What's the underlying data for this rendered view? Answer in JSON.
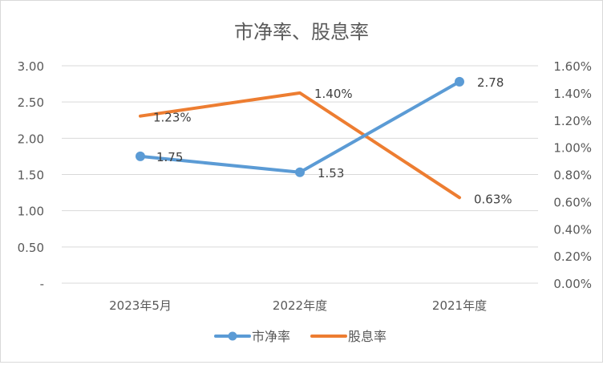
{
  "chart_data": {
    "type": "line",
    "title": "市净率、股息率",
    "categories": [
      "2023年5月",
      "2022年度",
      "2021年度"
    ],
    "series": [
      {
        "name": "市净率",
        "axis": "left",
        "values": [
          1.75,
          1.53,
          2.78
        ],
        "labels": [
          "1.75",
          "1.53",
          "2.78"
        ],
        "color": "#5B9BD5",
        "marker": "circle"
      },
      {
        "name": "股息率",
        "axis": "right",
        "values": [
          1.23,
          1.4,
          0.63
        ],
        "labels": [
          "1.23%",
          "1.40%",
          "0.63%"
        ],
        "color": "#ED7D31",
        "marker": "none"
      }
    ],
    "y_left": {
      "range": [
        0,
        3.0
      ],
      "ticks": [
        0,
        0.5,
        1.0,
        1.5,
        2.0,
        2.5,
        3.0
      ],
      "tick_labels": [
        "-",
        "0.50",
        "1.00",
        "1.50",
        "2.00",
        "2.50",
        "3.00"
      ]
    },
    "y_right": {
      "range": [
        0,
        1.6
      ],
      "unit": "%",
      "ticks": [
        0,
        0.2,
        0.4,
        0.6,
        0.8,
        1.0,
        1.2,
        1.4,
        1.6
      ],
      "tick_labels": [
        "0.00%",
        "0.20%",
        "0.40%",
        "0.60%",
        "0.80%",
        "1.00%",
        "1.20%",
        "1.40%",
        "1.60%"
      ]
    },
    "grid": true,
    "legend": "bottom",
    "colors": {
      "grid": "#d9d9d9",
      "text": "#595959",
      "title": "#595959"
    }
  }
}
